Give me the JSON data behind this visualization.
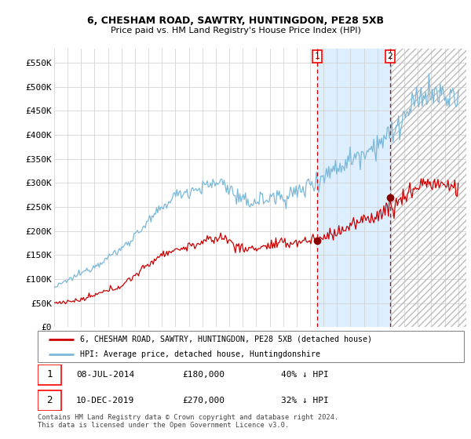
{
  "title1": "6, CHESHAM ROAD, SAWTRY, HUNTINGDON, PE28 5XB",
  "title2": "Price paid vs. HM Land Registry's House Price Index (HPI)",
  "ylim": [
    0,
    580000
  ],
  "yticks": [
    0,
    50000,
    100000,
    150000,
    200000,
    250000,
    300000,
    350000,
    400000,
    450000,
    500000,
    550000
  ],
  "ytick_labels": [
    "£0",
    "£50K",
    "£100K",
    "£150K",
    "£200K",
    "£250K",
    "£300K",
    "£350K",
    "£400K",
    "£450K",
    "£500K",
    "£550K"
  ],
  "purchase1_date": "08-JUL-2014",
  "purchase1_year": 2014.52,
  "purchase1_price": 180000,
  "purchase1_hpi_diff": "40% ↓ HPI",
  "purchase2_date": "10-DEC-2019",
  "purchase2_year": 2019.94,
  "purchase2_price": 270000,
  "purchase2_hpi_diff": "32% ↓ HPI",
  "hpi_color": "#7ab8d9",
  "price_color": "#cc0000",
  "shade_color": "#ddeeff",
  "dot_color": "#880000",
  "grid_color": "#cccccc",
  "legend_label1": "6, CHESHAM ROAD, SAWTRY, HUNTINGDON, PE28 5XB (detached house)",
  "legend_label2": "HPI: Average price, detached house, Huntingdonshire",
  "footer": "Contains HM Land Registry data © Crown copyright and database right 2024.\nThis data is licensed under the Open Government Licence v3.0.",
  "purchase1_price_str": "£180,000",
  "purchase2_price_str": "£270,000"
}
